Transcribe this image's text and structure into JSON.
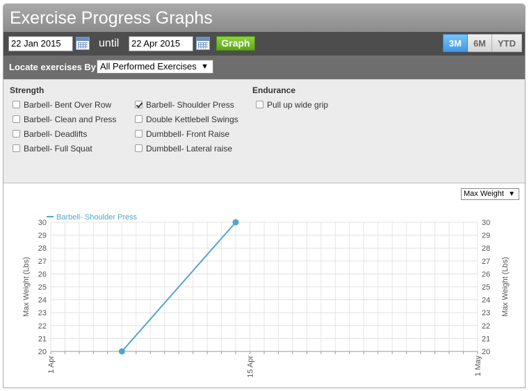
{
  "header": {
    "title": "Exercise Progress Graphs"
  },
  "date_range": {
    "start": "22 Jan 2015",
    "until_label": "until",
    "end": "22 Apr 2015",
    "graph_label": "Graph",
    "ranges": [
      {
        "label": "3M",
        "active": true
      },
      {
        "label": "6M",
        "active": false
      },
      {
        "label": "YTD",
        "active": false
      }
    ]
  },
  "locate": {
    "label": "Locate exercises By",
    "selected": "All Performed Exercises"
  },
  "exercises": {
    "strength_heading": "Strength",
    "endurance_heading": "Endurance",
    "col1": [
      {
        "label": "Barbell- Bent Over Row",
        "checked": false
      },
      {
        "label": "Barbell- Clean and Press",
        "checked": false
      },
      {
        "label": "Barbell- Deadlifts",
        "checked": false
      },
      {
        "label": "Barbell- Full Squat",
        "checked": false
      }
    ],
    "col2": [
      {
        "label": "Barbell- Shoulder Press",
        "checked": true
      },
      {
        "label": "Double Kettlebell Swings",
        "checked": false
      },
      {
        "label": "Dumbbell- Front Raise",
        "checked": false
      },
      {
        "label": "Dumbbell- Lateral raise",
        "checked": false
      }
    ],
    "col3": [
      {
        "label": "Pull up wide grip",
        "checked": false
      }
    ]
  },
  "metric_select": {
    "selected": "Max Weight"
  },
  "chart_data": {
    "type": "line",
    "series": [
      {
        "name": "Barbell- Shoulder Press",
        "color": "#4ea6d0",
        "points": [
          {
            "x": "2015-04-06",
            "y": 20
          },
          {
            "x": "2015-04-14",
            "y": 30
          }
        ]
      }
    ],
    "x_range": [
      "2015-04-01",
      "2015-05-01"
    ],
    "x_ticks": [
      {
        "date": "2015-04-01",
        "label": "1 Apr"
      },
      {
        "date": "2015-04-15",
        "label": "15 Apr"
      },
      {
        "date": "2015-05-01",
        "label": "1 May"
      }
    ],
    "ylim": [
      20,
      30
    ],
    "y_ticks": [
      20,
      21,
      22,
      23,
      24,
      25,
      26,
      27,
      28,
      29,
      30
    ],
    "ylabel": "Max Weight (Lbs)",
    "legend_position": "top-left",
    "grid": true
  }
}
